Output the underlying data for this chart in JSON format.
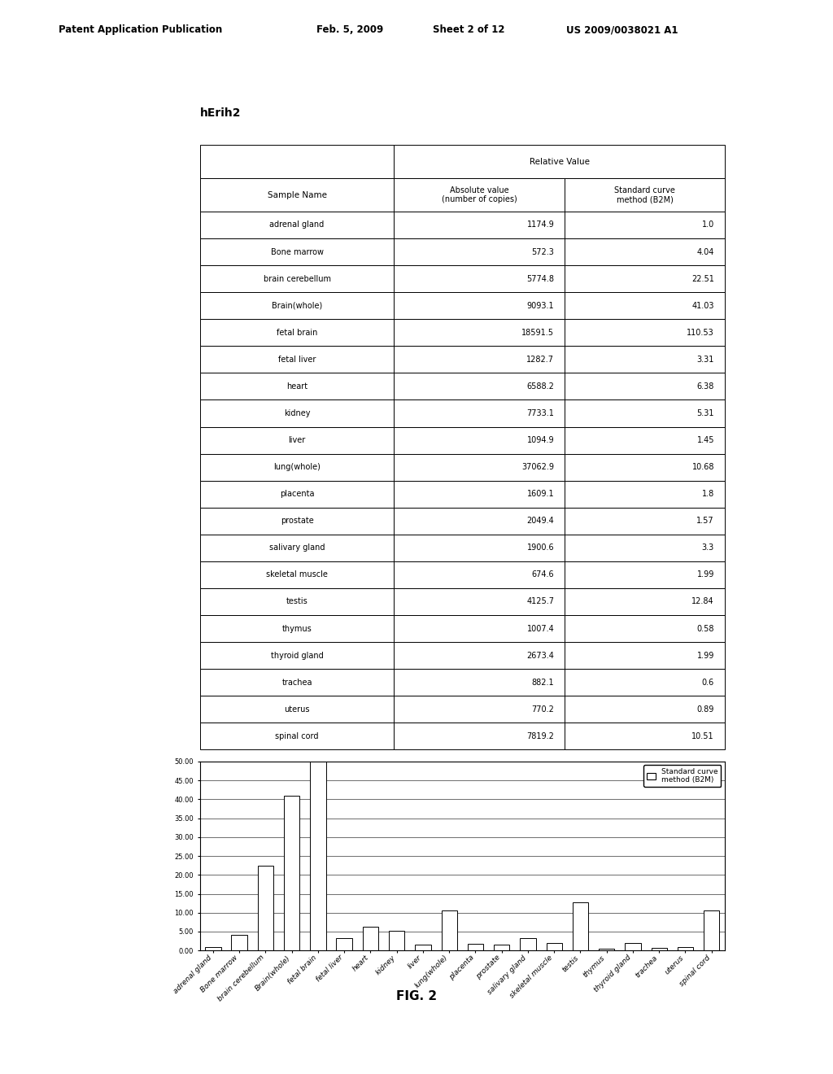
{
  "title_gene": "hErih2",
  "header_line1": "Patent Application Publication",
  "header_line2": "Feb. 5, 2009",
  "header_line3": "Sheet 2 of 12",
  "header_line4": "US 2009/0038021 A1",
  "fig_label": "FIG. 2",
  "col_header1": "Sample Name",
  "col_header2_line1": "Absolute value",
  "col_header2_line2": "(number of copies)",
  "col_header3_line1": "Standard curve",
  "col_header3_line2": "method (B2M)",
  "relative_value_header": "Relative Value",
  "samples": [
    "adrenal gland",
    "Bone marrow",
    "brain cerebellum",
    "Brain(whole)",
    "fetal brain",
    "fetal liver",
    "heart",
    "kidney",
    "liver",
    "lung(whole)",
    "placenta",
    "prostate",
    "salivary gland",
    "skeletal muscle",
    "testis",
    "thymus",
    "thyroid gland",
    "trachea",
    "uterus",
    "spinal cord"
  ],
  "absolute_values": [
    1174.9,
    572.3,
    5774.8,
    9093.1,
    18591.5,
    1282.7,
    6588.2,
    7733.1,
    1094.9,
    37062.9,
    1609.1,
    2049.4,
    1900.6,
    674.6,
    4125.7,
    1007.4,
    2673.4,
    882.1,
    770.2,
    7819.2
  ],
  "standard_curve_values": [
    1.0,
    4.04,
    22.51,
    41.03,
    110.53,
    3.31,
    6.38,
    5.31,
    1.45,
    10.68,
    1.8,
    1.57,
    3.3,
    1.99,
    12.84,
    0.58,
    1.99,
    0.6,
    0.89,
    10.51
  ],
  "bar_chart_ylim": [
    0,
    50
  ],
  "bar_chart_yticks": [
    0.0,
    5.0,
    10.0,
    15.0,
    20.0,
    25.0,
    30.0,
    35.0,
    40.0,
    45.0,
    50.0
  ],
  "legend_label": "Standard curve\nmethod (B2M)",
  "bar_color": "#ffffff",
  "bar_edgecolor": "#000000",
  "background_color": "#ffffff"
}
